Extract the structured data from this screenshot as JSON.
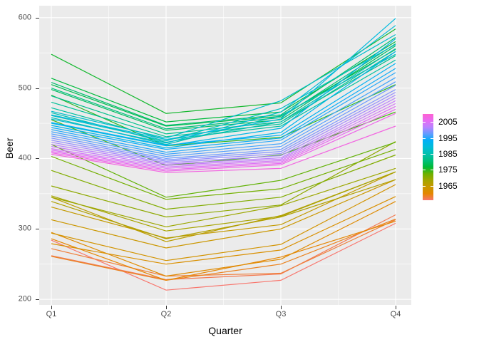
{
  "chart_data": {
    "type": "line",
    "title": "",
    "xlabel": "Quarter",
    "ylabel": "Beer",
    "categories": [
      "Q1",
      "Q2",
      "Q3",
      "Q4"
    ],
    "y_tick_labels": [
      "200",
      "300",
      "400",
      "500",
      "600"
    ],
    "y_ticks": [
      200,
      300,
      400,
      500,
      600
    ],
    "y_minor_ticks": [
      250,
      350,
      450,
      550
    ],
    "ylim": [
      192,
      617
    ],
    "grid": true,
    "panel_background": "#EBEBEB",
    "grid_color": "#FFFFFF",
    "tick_text_color": "#4D4D4D",
    "axis_title_color": "#000000",
    "legend": {
      "position": "right",
      "type": "colorbar",
      "labels": [
        "2005",
        "1995",
        "1985",
        "1975",
        "1965"
      ],
      "label_years": [
        2005,
        1995,
        1985,
        1975,
        1965
      ]
    },
    "color_scale": {
      "domain": [
        1956,
        2010
      ],
      "stops_bottom_to_top": [
        "#F8766D",
        "#E58700",
        "#C99800",
        "#A3A500",
        "#6BB100",
        "#00BA38",
        "#00BF7D",
        "#00C0AF",
        "#00BCD8",
        "#00B0F6",
        "#619CFF",
        "#B983FF",
        "#E76BF3",
        "#FD61D1"
      ]
    },
    "series": [
      {
        "year": 1956,
        "values": [
          284,
          213,
          227,
          308
        ]
      },
      {
        "year": 1957,
        "values": [
          262,
          228,
          236,
          320
        ]
      },
      {
        "year": 1958,
        "values": [
          272,
          233,
          237,
          313
        ]
      },
      {
        "year": 1959,
        "values": [
          261,
          227,
          250,
          314
        ]
      },
      {
        "year": 1960,
        "values": [
          286,
          227,
          260,
          311
        ]
      },
      {
        "year": 1961,
        "values": [
          295,
          233,
          257,
          339
        ]
      },
      {
        "year": 1962,
        "values": [
          279,
          250,
          270,
          346
        ]
      },
      {
        "year": 1963,
        "values": [
          294,
          255,
          278,
          363
        ]
      },
      {
        "year": 1964,
        "values": [
          313,
          273,
          300,
          370
        ]
      },
      {
        "year": 1965,
        "values": [
          331,
          287,
          306,
          381
        ]
      },
      {
        "year": 1966,
        "values": [
          345,
          282,
          319,
          381
        ]
      },
      {
        "year": 1967,
        "values": [
          339,
          286,
          317,
          370
        ]
      },
      {
        "year": 1968,
        "values": [
          347,
          297,
          318,
          381
        ]
      },
      {
        "year": 1969,
        "values": [
          345,
          303,
          333,
          386
        ]
      },
      {
        "year": 1970,
        "values": [
          361,
          317,
          334,
          424
        ]
      },
      {
        "year": 1971,
        "values": [
          383,
          328,
          345,
          405
        ]
      },
      {
        "year": 1972,
        "values": [
          403,
          342,
          357,
          413
        ]
      },
      {
        "year": 1973,
        "values": [
          420,
          345,
          369,
          423
        ]
      },
      {
        "year": 1974,
        "values": [
          455,
          390,
          405,
          466
        ]
      },
      {
        "year": 1975,
        "values": [
          490,
          418,
          430,
          505
        ]
      },
      {
        "year": 1976,
        "values": [
          548,
          464,
          479,
          584
        ]
      },
      {
        "year": 1977,
        "values": [
          514,
          452,
          466,
          566
        ]
      },
      {
        "year": 1978,
        "values": [
          505,
          446,
          460,
          555
        ]
      },
      {
        "year": 1979,
        "values": [
          498,
          440,
          455,
          560
        ]
      },
      {
        "year": 1980,
        "values": [
          508,
          447,
          462,
          572
        ]
      },
      {
        "year": 1981,
        "values": [
          500,
          442,
          458,
          563
        ]
      },
      {
        "year": 1982,
        "values": [
          489,
          435,
          452,
          546
        ]
      },
      {
        "year": 1983,
        "values": [
          480,
          431,
          449,
          552
        ]
      },
      {
        "year": 1984,
        "values": [
          472,
          427,
          446,
          540
        ]
      },
      {
        "year": 1985,
        "values": [
          465,
          423,
          452,
          556
        ]
      },
      {
        "year": 1986,
        "values": [
          458,
          420,
          461,
          548
        ]
      },
      {
        "year": 1987,
        "values": [
          461,
          425,
          471,
          562
        ]
      },
      {
        "year": 1988,
        "values": [
          467,
          429,
          482,
          576
        ]
      },
      {
        "year": 1989,
        "values": [
          456,
          422,
          466,
          589
        ]
      },
      {
        "year": 1990,
        "values": [
          462,
          427,
          456,
          599
        ]
      },
      {
        "year": 1991,
        "values": [
          450,
          418,
          443,
          570
        ]
      },
      {
        "year": 1992,
        "values": [
          447,
          415,
          437,
          552
        ]
      },
      {
        "year": 1993,
        "values": [
          451,
          419,
          433,
          535
        ]
      },
      {
        "year": 1994,
        "values": [
          444,
          413,
          429,
          528
        ]
      },
      {
        "year": 1995,
        "values": [
          441,
          409,
          426,
          522
        ]
      },
      {
        "year": 1996,
        "values": [
          438,
          406,
          421,
          515
        ]
      },
      {
        "year": 1997,
        "values": [
          435,
          403,
          417,
          509
        ]
      },
      {
        "year": 1998,
        "values": [
          432,
          400,
          413,
          504
        ]
      },
      {
        "year": 1999,
        "values": [
          429,
          398,
          410,
          498
        ]
      },
      {
        "year": 2000,
        "values": [
          426,
          396,
          407,
          494
        ]
      },
      {
        "year": 2001,
        "values": [
          423,
          394,
          404,
          490
        ]
      },
      {
        "year": 2002,
        "values": [
          420,
          392,
          401,
          486
        ]
      },
      {
        "year": 2003,
        "values": [
          417,
          390,
          399,
          482
        ]
      },
      {
        "year": 2004,
        "values": [
          414,
          388,
          397,
          478
        ]
      },
      {
        "year": 2005,
        "values": [
          412,
          386,
          395,
          474
        ]
      },
      {
        "year": 2006,
        "values": [
          410,
          384,
          393,
          470
        ]
      },
      {
        "year": 2007,
        "values": [
          408,
          382,
          391,
          464
        ]
      },
      {
        "year": 2008,
        "values": [
          406,
          380,
          386,
          446
        ]
      }
    ]
  }
}
